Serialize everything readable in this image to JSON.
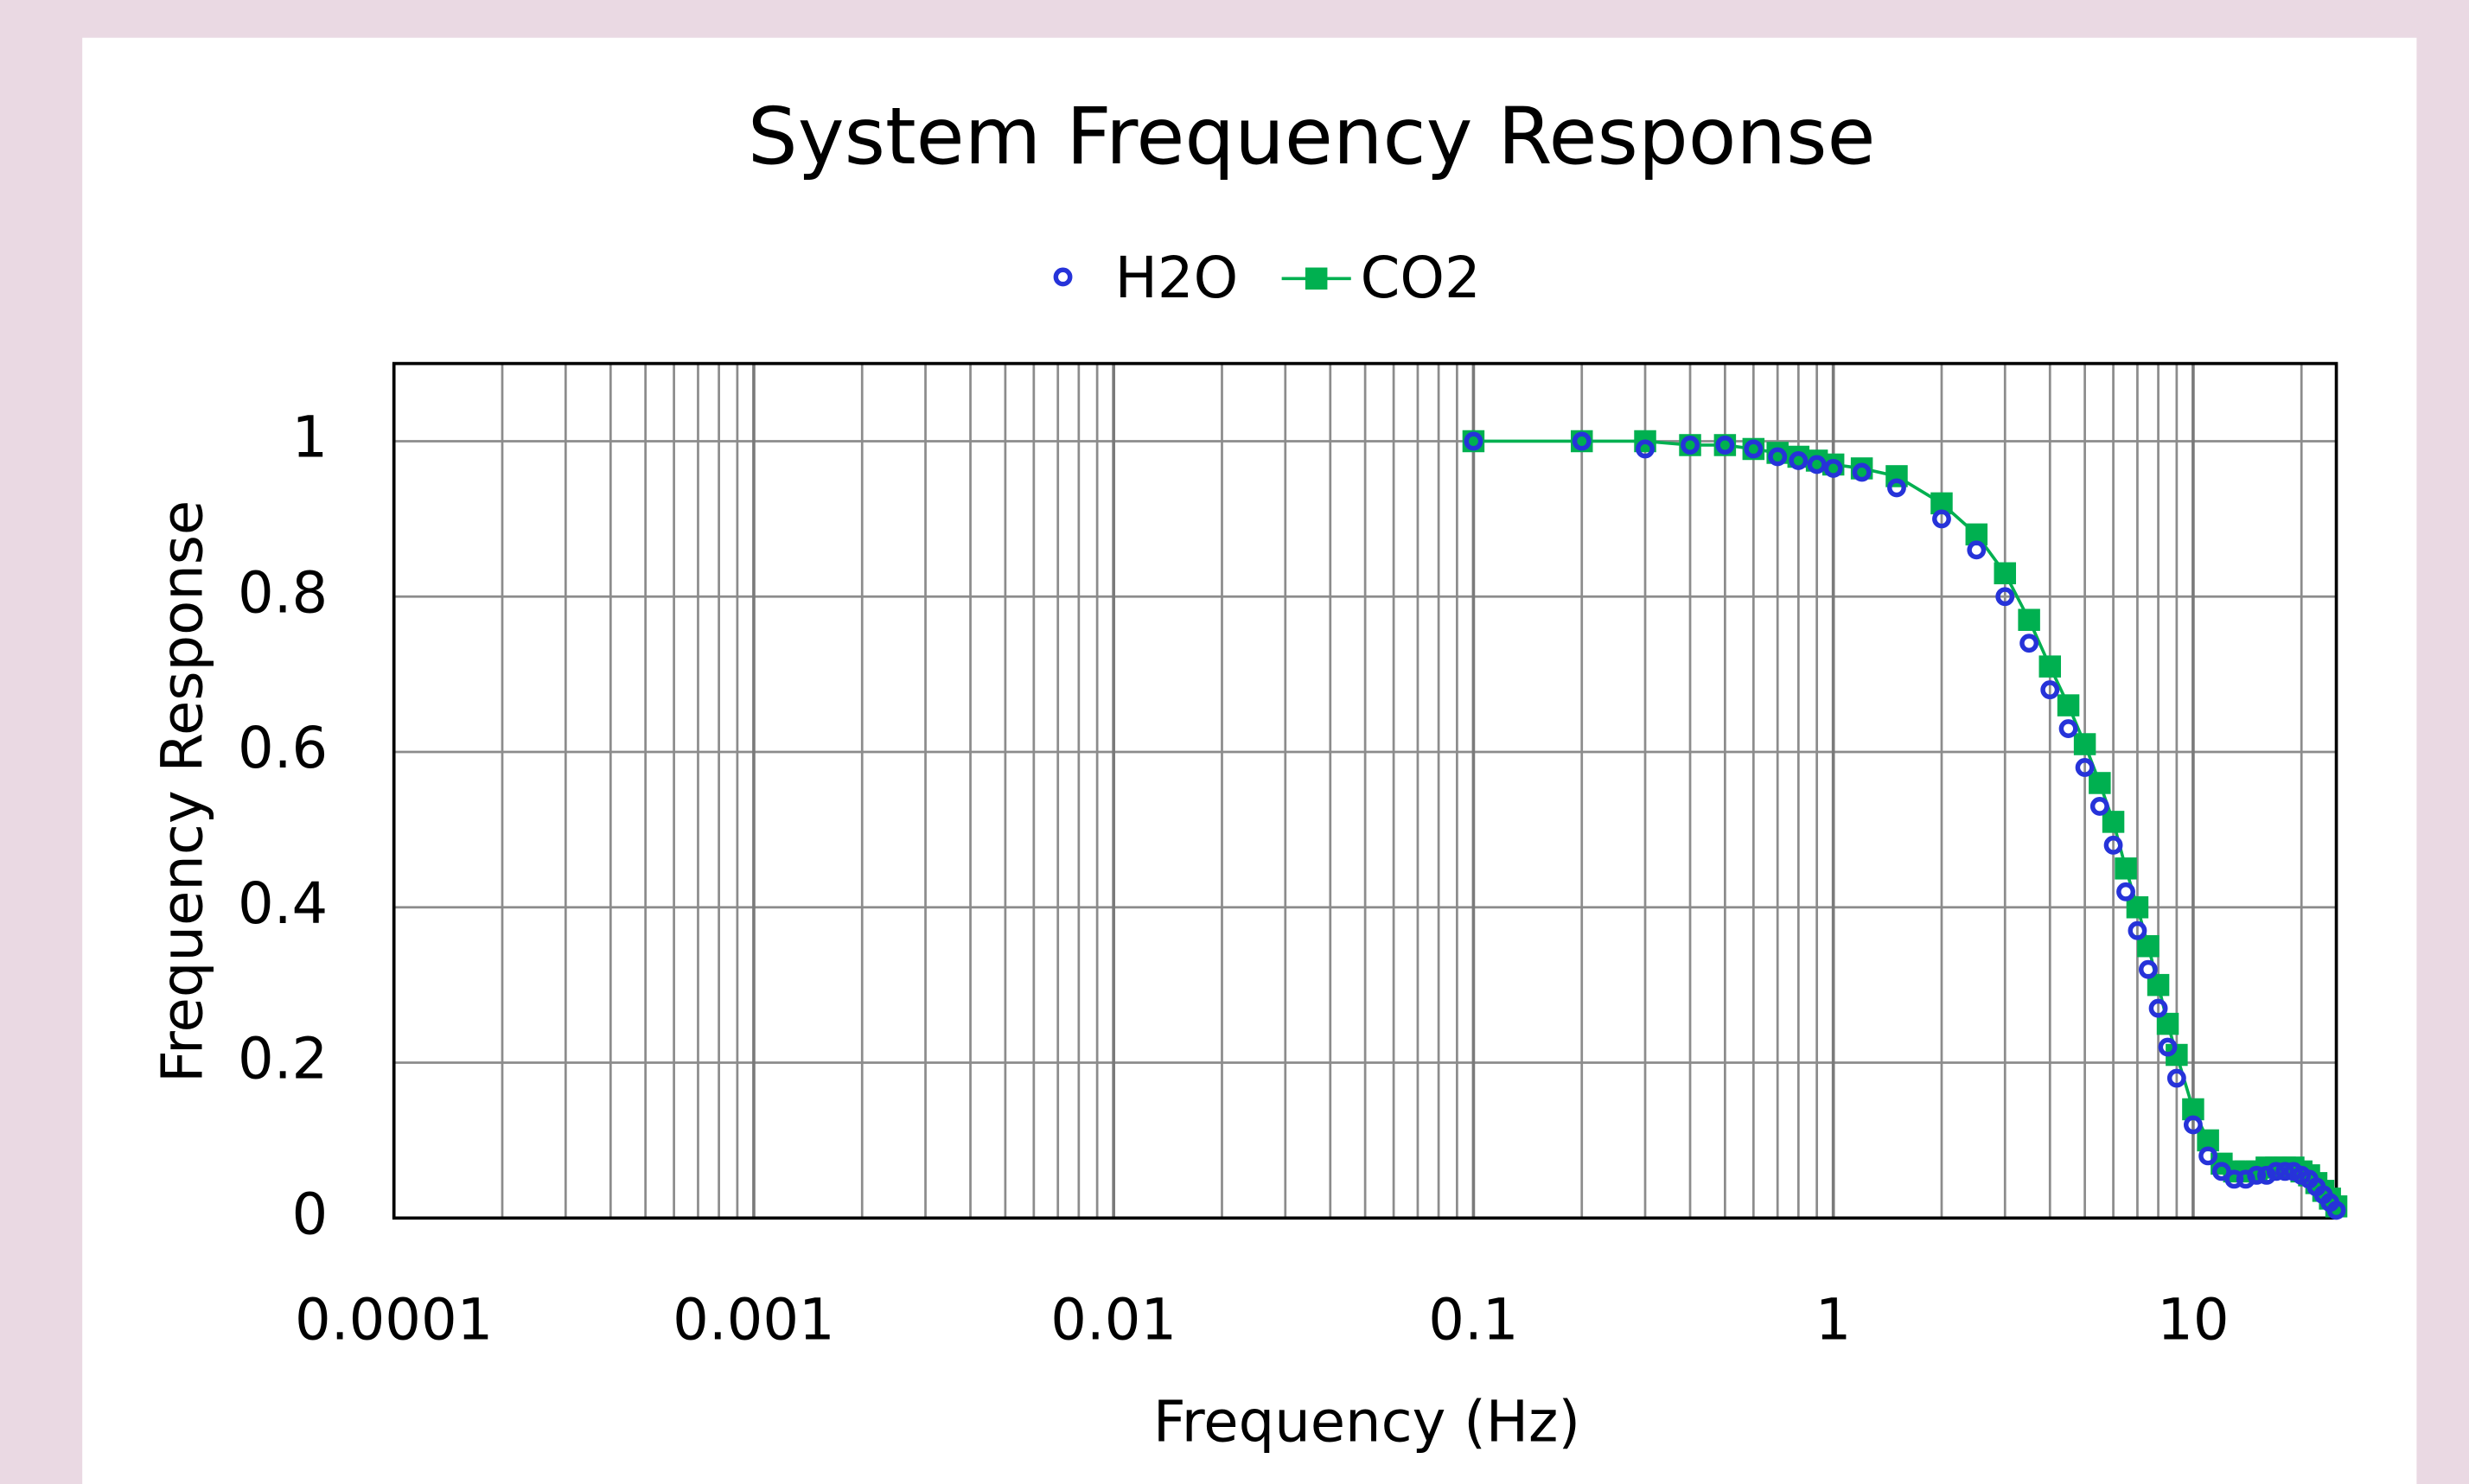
{
  "chart_data": {
    "type": "scatter",
    "title": "System Frequency Response",
    "x_label": "Frequency (Hz)",
    "y_label": "Frequency Response",
    "x": [
      0.1,
      0.2,
      0.3,
      0.4,
      0.5,
      0.6,
      0.7,
      0.8,
      0.9,
      1.0,
      1.2,
      1.5,
      2,
      2.5,
      3,
      3.5,
      4,
      4.5,
      5,
      5.5,
      6,
      6.5,
      7,
      7.5,
      8,
      8.5,
      9,
      10,
      11,
      12,
      13,
      14,
      15,
      16,
      17,
      18,
      19,
      20,
      21,
      22,
      23,
      24,
      25
    ],
    "series": [
      {
        "name": "CO2",
        "color": "#00b050",
        "marker": "square",
        "line": true,
        "values": [
          1.0,
          1.0,
          1.0,
          0.995,
          0.995,
          0.99,
          0.985,
          0.98,
          0.975,
          0.97,
          0.965,
          0.955,
          0.92,
          0.88,
          0.83,
          0.77,
          0.71,
          0.66,
          0.61,
          0.56,
          0.51,
          0.45,
          0.4,
          0.35,
          0.3,
          0.25,
          0.21,
          0.14,
          0.1,
          0.07,
          0.06,
          0.06,
          0.06,
          0.065,
          0.065,
          0.065,
          0.065,
          0.06,
          0.055,
          0.045,
          0.035,
          0.025,
          0.015
        ]
      },
      {
        "name": "H2O",
        "color": "#2633d9",
        "marker": "circle",
        "line": false,
        "values": [
          1.0,
          1.0,
          0.99,
          0.995,
          0.995,
          0.99,
          0.98,
          0.975,
          0.97,
          0.965,
          0.96,
          0.94,
          0.9,
          0.86,
          0.8,
          0.74,
          0.68,
          0.63,
          0.58,
          0.53,
          0.48,
          0.42,
          0.37,
          0.32,
          0.27,
          0.22,
          0.18,
          0.12,
          0.08,
          0.06,
          0.05,
          0.05,
          0.055,
          0.055,
          0.06,
          0.06,
          0.06,
          0.055,
          0.05,
          0.04,
          0.03,
          0.02,
          0.01
        ]
      }
    ],
    "xlim": [
      0.0001,
      25
    ],
    "xticks": [
      0.0001,
      0.001,
      0.01,
      0.1,
      1,
      10
    ],
    "xscale": "log",
    "ylim": [
      0,
      1.1
    ],
    "yticks": [
      0,
      0.2,
      0.4,
      0.6,
      0.8,
      1
    ],
    "grid": true,
    "minor_grid": true,
    "legend": "top"
  }
}
